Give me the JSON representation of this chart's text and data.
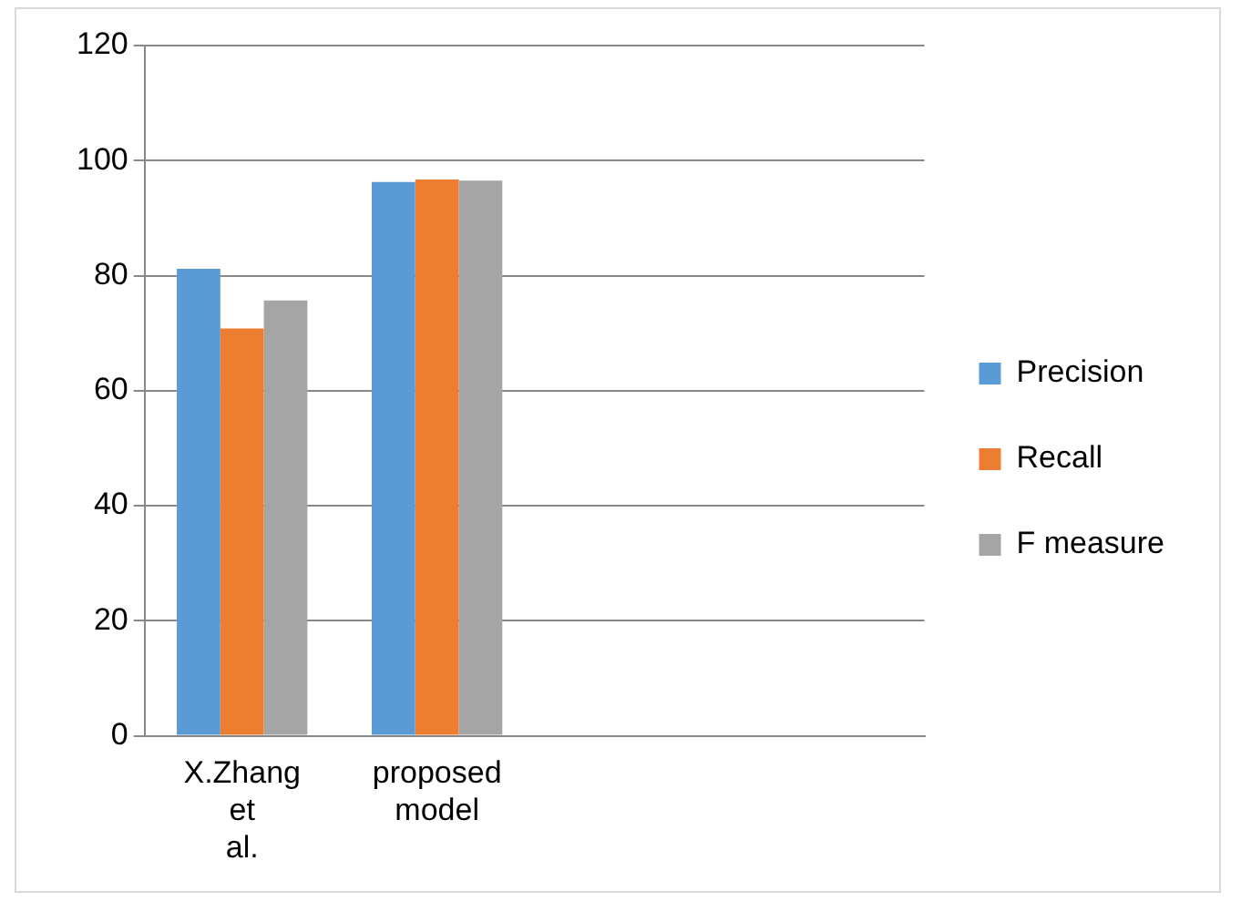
{
  "chart_data": {
    "type": "bar",
    "categories": [
      "X.Zhang et al.",
      "proposed model",
      null,
      null
    ],
    "series": [
      {
        "name": "Precision",
        "color": "#5b9bd5",
        "values": [
          81.2,
          96.3,
          null,
          null
        ]
      },
      {
        "name": "Recall",
        "color": "#ed7d31",
        "values": [
          70.8,
          96.7,
          null,
          null
        ]
      },
      {
        "name": "F measure",
        "color": "#a5a5a5",
        "values": [
          75.7,
          96.5,
          null,
          null
        ]
      }
    ],
    "ylim": [
      0,
      120
    ],
    "yticks": [
      0,
      20,
      40,
      60,
      80,
      100,
      120
    ],
    "grid": "y",
    "legend": "right"
  }
}
